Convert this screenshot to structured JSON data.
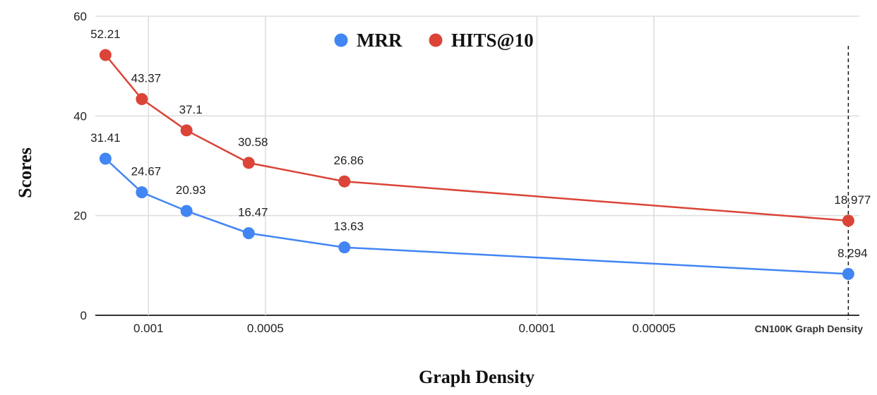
{
  "chart_data": {
    "type": "line",
    "title": "",
    "xlabel": "Graph Density",
    "ylabel": "Scores",
    "xscale": "log-reversed",
    "xlim": [
      0.00137,
      1.48e-05
    ],
    "ylim": [
      0,
      60
    ],
    "y_ticks": [
      0,
      20,
      40,
      60
    ],
    "x_ticks": [
      {
        "value": 0.001,
        "label": "0.001"
      },
      {
        "value": 0.0005,
        "label": "0.0005"
      },
      {
        "value": 0.0001,
        "label": "0.0001"
      },
      {
        "value": 5e-05,
        "label": "0.00005"
      }
    ],
    "x": [
      0.00129,
      0.00104,
      0.000798,
      0.000552,
      0.000313,
      1.58e-05
    ],
    "annotation": {
      "x": 1.58e-05,
      "label": "CN100K Graph Density",
      "style": "dashed-vertical"
    },
    "grid": true,
    "legend": {
      "placement": "top-center"
    },
    "series": [
      {
        "name": "MRR",
        "color": "#4285F4",
        "values": [
          31.41,
          24.67,
          20.93,
          16.47,
          13.63,
          8.294
        ],
        "labels": [
          "31.41",
          "24.67",
          "20.93",
          "16.47",
          "13.63",
          "8.294"
        ]
      },
      {
        "name": "HITS@10",
        "color": "#DB4437",
        "values": [
          52.21,
          43.37,
          37.1,
          30.58,
          26.86,
          18.977
        ],
        "labels": [
          "52.21",
          "43.37",
          "37.1",
          "30.58",
          "26.86",
          "18.977"
        ]
      }
    ]
  }
}
